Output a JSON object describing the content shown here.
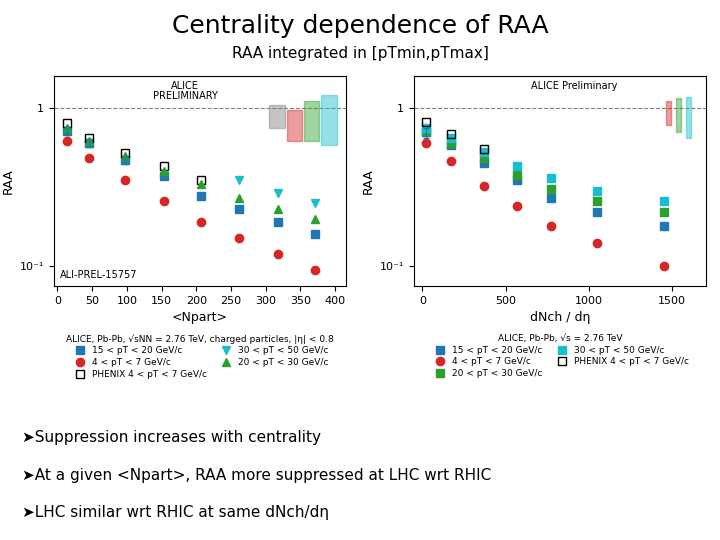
{
  "title": "Centrality dependence of RAA",
  "subtitle": "RAA integrated in [pTmin,pTmax]",
  "annotations": [
    "➤Suppression increases with centrality",
    "➤At a given <Npart>, RAA more suppressed at LHC wrt RHIC",
    "➤LHC similar wrt RHIC at same dNch/dη"
  ],
  "chart_data": [
    {
      "type": "scatter",
      "x_label": "<Npart>",
      "y_label": "RAA",
      "log": "y",
      "xlim": [
        -5,
        415
      ],
      "xticks": [
        0,
        50,
        100,
        150,
        200,
        250,
        300,
        350,
        400
      ],
      "ylim": [
        0.075,
        1.6
      ],
      "yticks": [
        {
          "value": 0.1,
          "label": "10⁻¹"
        },
        1
      ],
      "reference_line": 1,
      "legend": "below",
      "legend_title": "ALICE, Pb-Pb, √sNN = 2.76 TeV, charged particles, |η| < 0.8",
      "annotations": [
        "ALICE",
        "PRELIMINARY",
        "ALI-PREL-15757"
      ],
      "x": [
        14,
        46,
        97,
        153,
        207,
        261,
        318,
        371
      ],
      "series": [
        {
          "name": "15 < pT < 20 GeV/c",
          "color": "#1f77b4",
          "marker": "square",
          "values": [
            0.72,
            0.6,
            0.47,
            0.37,
            0.28,
            0.23,
            0.19,
            0.16
          ],
          "errors": [
            0.0432,
            0.036,
            0.0282,
            null,
            null,
            null,
            null,
            null
          ]
        },
        {
          "name": "4 < pT < 7 GeV/c",
          "color": "#d62728",
          "marker": "circle",
          "values": [
            0.62,
            0.48,
            0.35,
            0.26,
            0.19,
            0.15,
            0.12,
            0.095
          ]
        },
        {
          "name": "PHENIX 4 < pT < 7 GeV/c",
          "color": "#000000",
          "marker": "open_square",
          "values": [
            0.8,
            0.65,
            0.52,
            0.43,
            0.35,
            null,
            null,
            null
          ]
        },
        {
          "name": "30 < pT < 50 GeV/c",
          "color": "#17becf",
          "marker": "triangle_down",
          "values": [
            null,
            null,
            null,
            null,
            null,
            0.35,
            0.29,
            0.25
          ]
        },
        {
          "name": "20 < pT < 30 GeV/c",
          "color": "#2ca02c",
          "marker": "triangle_up",
          "values": [
            0.75,
            0.62,
            0.5,
            0.4,
            0.33,
            0.27,
            0.23,
            0.2
          ]
        }
      ],
      "boxes": [
        {
          "x": 316,
          "width": 22,
          "low": 0.75,
          "high": 1.05,
          "color": "#7f7f7f"
        },
        {
          "x": 341,
          "width": 22,
          "low": 0.62,
          "high": 0.97,
          "color": "#d62728"
        },
        {
          "x": 366,
          "width": 22,
          "low": 0.62,
          "high": 1.1,
          "color": "#2ca02c"
        },
        {
          "x": 391,
          "width": 22,
          "low": 0.58,
          "high": 1.2,
          "color": "#17becf"
        }
      ]
    },
    {
      "type": "scatter",
      "x_label": "dNch / dη",
      "y_label": "RAA",
      "log": "y",
      "xlim": [
        -50,
        1700
      ],
      "xticks": [
        0,
        500,
        1000,
        1500
      ],
      "ylim": [
        0.075,
        1.6
      ],
      "yticks": [
        {
          "value": 0.1,
          "label": "10⁻¹"
        },
        1
      ],
      "reference_line": 1,
      "legend": "below",
      "legend_title": "ALICE, Pb-Pb, √s = 2.76 TeV",
      "annotations": [
        "ALICE Preliminary"
      ],
      "x": [
        25,
        170,
        370,
        570,
        770,
        1050,
        1450
      ],
      "series": [
        {
          "name": "15 < pT < 20 GeV/c",
          "color": "#1f77b4",
          "marker": "square",
          "values": [
            0.7,
            0.58,
            0.45,
            0.35,
            0.27,
            0.22,
            0.18
          ],
          "errors": [
            0.05,
            null,
            null,
            null,
            null,
            null,
            null
          ]
        },
        {
          "name": "4 < pT < 7 GeV/c",
          "color": "#d62728",
          "marker": "circle",
          "values": [
            0.6,
            0.46,
            0.32,
            0.24,
            0.18,
            0.14,
            0.1
          ]
        },
        {
          "name": "20 < pT < 30 GeV/c",
          "color": "#2ca02c",
          "marker": "square",
          "values": [
            0.72,
            0.6,
            0.48,
            0.38,
            0.31,
            0.26,
            0.22
          ]
        },
        {
          "name": "30 < pT < 50 GeV/c",
          "color": "#17becf",
          "marker": "square",
          "values": [
            0.75,
            0.65,
            0.53,
            0.43,
            0.36,
            0.3,
            0.26
          ]
        },
        {
          "name": "PHENIX 4 < pT < 7 GeV/c",
          "color": "#000000",
          "marker": "open_square",
          "values": [
            0.82,
            0.68,
            0.55,
            null,
            null,
            null,
            null
          ]
        }
      ],
      "boxes": [
        {
          "x": 1480,
          "width": 30,
          "low": 0.78,
          "high": 1.1,
          "color": "#d62728"
        },
        {
          "x": 1540,
          "width": 30,
          "low": 0.7,
          "high": 1.15,
          "color": "#2ca02c"
        },
        {
          "x": 1600,
          "width": 30,
          "low": 0.65,
          "high": 1.18,
          "color": "#17becf"
        }
      ]
    }
  ]
}
